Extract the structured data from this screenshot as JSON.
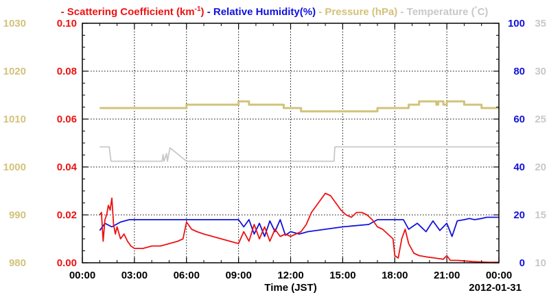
{
  "chart_data": {
    "type": "line",
    "legend": [
      {
        "dash": "-",
        "text": "Scattering Coefficient (km",
        "sup": "-1",
        "close": ")",
        "color": "#ee1111"
      },
      {
        "dash": "-",
        "text": "Relative Humidity(%)",
        "color": "#1111dd"
      },
      {
        "dash": "-",
        "text": "Pressure (hPa)",
        "color": "#d2c27a"
      },
      {
        "dash": "-",
        "text": "Temperature (",
        "sup": "°",
        "close": "C)",
        "color": "#c8c8c8"
      }
    ],
    "xlabel": "Time (JST)",
    "date_label": "2012-01-31",
    "x_ticks": [
      "00:00",
      "03:00",
      "06:00",
      "09:00",
      "12:00",
      "15:00",
      "18:00",
      "21:00",
      "00:00"
    ],
    "x_range_hours": [
      0,
      24
    ],
    "grid": true,
    "axes": {
      "pressure": {
        "ticks": [
          "980",
          "990",
          "1000",
          "1010",
          "1020",
          "1030"
        ],
        "range": [
          980,
          1030
        ],
        "color": "#d2c27a"
      },
      "scattering": {
        "ticks": [
          "0.00",
          "0.02",
          "0.04",
          "0.06",
          "0.08",
          "0.10"
        ],
        "range": [
          0,
          0.1
        ],
        "color": "#ee1111"
      },
      "humidity": {
        "ticks": [
          "0",
          "20",
          "40",
          "60",
          "80",
          "100"
        ],
        "range": [
          0,
          100
        ],
        "color": "#1111dd"
      },
      "temperature": {
        "ticks": [
          "10",
          "15",
          "20",
          "25",
          "30",
          "35"
        ],
        "range": [
          10,
          35
        ],
        "color": "#c8c8c8"
      }
    },
    "series": [
      {
        "name": "Pressure (hPa)",
        "axis": "pressure",
        "color": "#d2c27a",
        "step": true,
        "x": [
          1.0,
          6.0,
          9.0,
          9.6,
          11.6,
          12.6,
          17.0,
          18.8,
          19.4,
          20.4,
          20.5,
          20.8,
          21.0,
          22.0,
          23.0,
          24.0
        ],
        "y": [
          1012.3,
          1013.0,
          1013.7,
          1013.0,
          1012.3,
          1011.6,
          1012.3,
          1013.0,
          1013.7,
          1013.0,
          1013.7,
          1013.0,
          1013.7,
          1013.0,
          1012.3,
          1012.3
        ]
      },
      {
        "name": "Temperature (°C)",
        "axis": "temperature",
        "color": "#c8c8c8",
        "x": [
          1.0,
          1.55,
          1.65,
          4.6,
          4.65,
          4.7,
          4.85,
          4.9,
          5.05,
          6.0,
          14.5,
          14.55,
          24.0
        ],
        "y": [
          22.1,
          22.1,
          20.6,
          20.6,
          21.3,
          20.6,
          21.4,
          20.6,
          22.0,
          20.6,
          20.6,
          22.1,
          22.1
        ]
      },
      {
        "name": "Relative Humidity(%)",
        "axis": "humidity",
        "color": "#1111dd",
        "x": [
          1.0,
          1.3,
          1.7,
          2.2,
          2.7,
          9.0,
          9.3,
          9.6,
          9.9,
          10.2,
          10.5,
          10.8,
          11.1,
          11.4,
          11.7,
          12.0,
          12.5,
          13.0,
          14.0,
          15.0,
          16.5,
          17.0,
          18.5,
          18.8,
          19.3,
          19.8,
          20.2,
          20.6,
          21.0,
          21.3,
          21.6,
          22.0,
          22.3,
          22.6,
          23.0,
          23.3,
          23.5,
          24.0
        ],
        "y": [
          13.5,
          16.5,
          15.0,
          17.0,
          18.0,
          18.0,
          15.0,
          18.0,
          12.0,
          16.5,
          11.0,
          17.5,
          13.0,
          18.0,
          11.5,
          13.0,
          12.0,
          13.0,
          14.0,
          15.0,
          16.0,
          18.0,
          18.0,
          14.0,
          16.5,
          13.0,
          17.5,
          13.5,
          16.5,
          11.0,
          17.5,
          18.0,
          18.5,
          18.0,
          18.5,
          19.0,
          19.0,
          19.0
        ]
      },
      {
        "name": "Scattering Coefficient",
        "axis": "scattering",
        "color": "#ee1111",
        "x": [
          1.0,
          1.1,
          1.2,
          1.3,
          1.4,
          1.5,
          1.6,
          1.7,
          1.8,
          1.9,
          2.0,
          2.2,
          2.4,
          2.6,
          2.8,
          3.0,
          3.5,
          4.0,
          4.5,
          5.0,
          5.5,
          5.8,
          6.0,
          6.3,
          6.6,
          7.0,
          7.5,
          8.0,
          8.5,
          9.0,
          9.3,
          9.6,
          9.9,
          10.2,
          10.5,
          10.8,
          11.1,
          11.4,
          11.7,
          12.0,
          12.3,
          12.6,
          12.9,
          13.2,
          13.5,
          13.8,
          14.0,
          14.3,
          14.6,
          14.9,
          15.2,
          15.5,
          15.8,
          16.1,
          16.4,
          16.7,
          17.0,
          17.3,
          17.6,
          17.9,
          18.0,
          18.2,
          18.4,
          18.6,
          18.8,
          19.1,
          19.4,
          19.8,
          20.3,
          20.8,
          21.0,
          21.2,
          21.6,
          22.0,
          22.5,
          23.0,
          23.5,
          24.0
        ],
        "y": [
          0.02,
          0.021,
          0.009,
          0.018,
          0.02,
          0.024,
          0.022,
          0.027,
          0.016,
          0.012,
          0.015,
          0.01,
          0.012,
          0.009,
          0.007,
          0.006,
          0.006,
          0.007,
          0.007,
          0.008,
          0.009,
          0.01,
          0.017,
          0.014,
          0.013,
          0.012,
          0.011,
          0.01,
          0.009,
          0.008,
          0.013,
          0.009,
          0.016,
          0.01,
          0.015,
          0.009,
          0.014,
          0.011,
          0.012,
          0.011,
          0.012,
          0.013,
          0.016,
          0.021,
          0.024,
          0.027,
          0.029,
          0.028,
          0.025,
          0.022,
          0.02,
          0.019,
          0.021,
          0.021,
          0.02,
          0.018,
          0.015,
          0.014,
          0.012,
          0.01,
          0.003,
          0.002,
          0.01,
          0.014,
          0.008,
          0.004,
          0.003,
          0.0025,
          0.002,
          0.0015,
          0.003,
          0.001,
          0.001,
          0.0008,
          0.0005,
          0.0003,
          0.0002,
          0.0002
        ]
      }
    ]
  }
}
